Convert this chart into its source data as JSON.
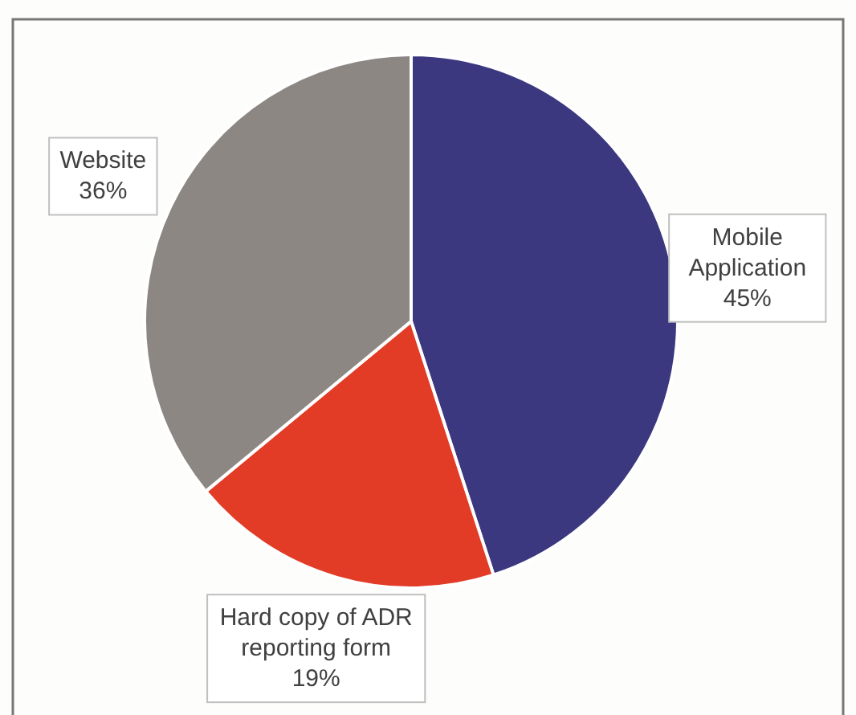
{
  "chart_data": {
    "type": "pie",
    "categories": [
      "Mobile Application",
      "Hard copy of ADR reporting form",
      "Website"
    ],
    "values": [
      45,
      19,
      36
    ],
    "value_labels": [
      "45%",
      "19%",
      "36%"
    ],
    "colors": [
      "#3b3880",
      "#e23b26",
      "#8c8783"
    ]
  }
}
